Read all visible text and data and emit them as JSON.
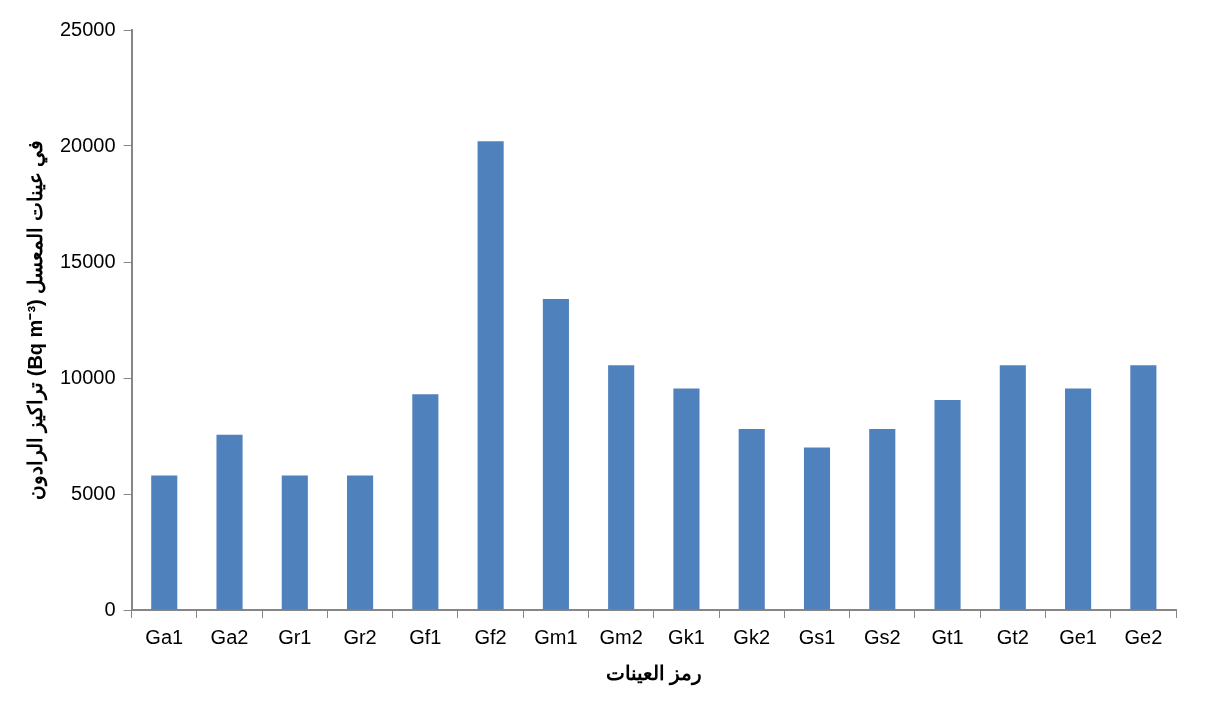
{
  "chart_data": {
    "type": "bar",
    "xlabel": "رمز العينات",
    "ylabel": "تراكيز الرادون (Bq m⁻³) في عينات المعسل",
    "categories": [
      "Ga1",
      "Ga2",
      "Gr1",
      "Gr2",
      "Gf1",
      "Gf2",
      "Gm1",
      "Gm2",
      "Gk1",
      "Gk2",
      "Gs1",
      "Gs2",
      "Gt1",
      "Gt2",
      "Ge1",
      "Ge2"
    ],
    "values": [
      5800,
      7550,
      5800,
      5800,
      9300,
      20200,
      13400,
      10550,
      9550,
      7800,
      7000,
      7800,
      9050,
      10550,
      9550,
      10550
    ],
    "color": "#4f81bd",
    "ylim": [
      0,
      25000
    ],
    "yticks": [
      0,
      5000,
      10000,
      15000,
      20000,
      25000
    ],
    "grid": false,
    "legend": false
  }
}
